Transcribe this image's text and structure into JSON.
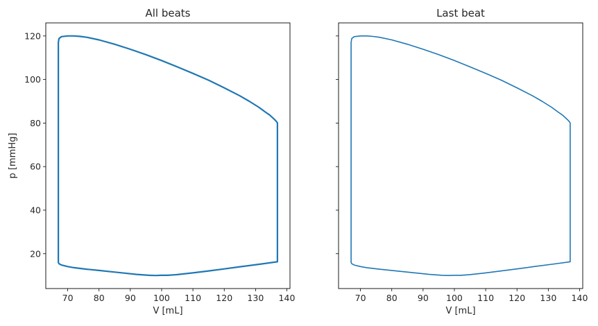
{
  "chart_data": [
    {
      "type": "line",
      "title": "All beats",
      "xlabel": "V [mL]",
      "ylabel": "p [mmHg]",
      "xlim": [
        63,
        141
      ],
      "ylim": [
        4,
        126
      ],
      "xticks": [
        70,
        80,
        90,
        100,
        110,
        120,
        130,
        140
      ],
      "yticks": [
        20,
        40,
        60,
        80,
        100,
        120
      ],
      "grid": false,
      "line_color": "#1f77b4",
      "series": [
        {
          "x": [
            67,
            67,
            67.2,
            68,
            70,
            72,
            74,
            76,
            80,
            85,
            90,
            95,
            100,
            105,
            110,
            115,
            120,
            125,
            128,
            131,
            133,
            134.5,
            135.5,
            136.3,
            136.8,
            137,
            137,
            137,
            137,
            137,
            132,
            125,
            120,
            115,
            110,
            105,
            102,
            100,
            98,
            96,
            92,
            88,
            84,
            80,
            76,
            72,
            70,
            68,
            67.2,
            67,
            67
          ],
          "y": [
            16,
            117,
            118.8,
            119.7,
            120,
            120,
            119.8,
            119.4,
            118.2,
            116.2,
            113.9,
            111.4,
            108.7,
            105.8,
            102.8,
            99.7,
            96.2,
            92.5,
            90,
            87.3,
            85.2,
            83.7,
            82.4,
            81.3,
            80.5,
            80,
            70,
            40,
            20,
            16.3,
            15.3,
            14,
            13,
            12.1,
            11.2,
            10.4,
            10.1,
            10.1,
            10,
            10.1,
            10.5,
            11.1,
            11.7,
            12.3,
            12.9,
            13.6,
            14.1,
            14.8,
            15.4,
            16,
            16
          ]
        }
      ]
    },
    {
      "type": "line",
      "title": "Last beat",
      "xlabel": "V [mL]",
      "ylabel": "",
      "xlim": [
        63,
        141
      ],
      "ylim": [
        4,
        126
      ],
      "xticks": [
        70,
        80,
        90,
        100,
        110,
        120,
        130,
        140
      ],
      "yticks": [
        20,
        40,
        60,
        80,
        100,
        120
      ],
      "grid": false,
      "shared_y": true,
      "line_color": "#1f77b4",
      "series": [
        {
          "x": [
            67,
            67,
            67.2,
            68,
            70,
            72,
            74,
            76,
            80,
            85,
            90,
            95,
            100,
            105,
            110,
            115,
            120,
            125,
            128,
            131,
            133,
            134.5,
            135.5,
            136.3,
            136.8,
            137,
            137,
            137,
            137,
            137,
            132,
            125,
            120,
            115,
            110,
            105,
            102,
            100,
            98,
            96,
            92,
            88,
            84,
            80,
            76,
            72,
            70,
            68,
            67.2,
            67,
            67,
            67
          ],
          "y": [
            16,
            117,
            118.8,
            119.7,
            120,
            120,
            119.8,
            119.4,
            118.2,
            116.2,
            113.9,
            111.4,
            108.7,
            105.8,
            102.8,
            99.7,
            96.2,
            92.5,
            90,
            87.3,
            85.2,
            83.7,
            82.4,
            81.3,
            80.5,
            80,
            70,
            40,
            20,
            16.3,
            15.3,
            14,
            13,
            12.1,
            11.2,
            10.4,
            10.1,
            10.1,
            10,
            10.1,
            10.5,
            11.1,
            11.7,
            12.3,
            12.9,
            13.6,
            14.1,
            14.8,
            15.4,
            16,
            40,
            39
          ]
        }
      ]
    }
  ]
}
